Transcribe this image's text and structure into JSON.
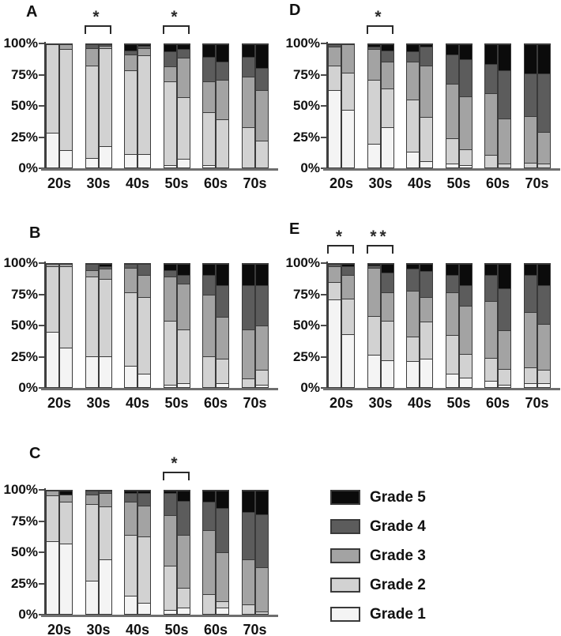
{
  "figure_title": "",
  "colors": {
    "grade_colors": [
      "#f4f4f4",
      "#d2d2d2",
      "#a3a3a3",
      "#5c5c5c",
      "#0b0b0b"
    ],
    "bar_border": "#3a3a3a",
    "axis": "#404040",
    "baseline": "#6e6e6e",
    "text": "#111111"
  },
  "axis": {
    "y_ticks": [
      "100%",
      "75%",
      "50%",
      "25%",
      "0%"
    ],
    "x_categories": [
      "20s",
      "30s",
      "40s",
      "50s",
      "60s",
      "70s"
    ],
    "ylim": [
      0,
      100
    ],
    "grid": false
  },
  "legend": {
    "position": "bottom-right",
    "items": [
      {
        "label": "Grade 5",
        "color": "#0b0b0b"
      },
      {
        "label": "Grade 4",
        "color": "#5c5c5c"
      },
      {
        "label": "Grade 3",
        "color": "#a3a3a3"
      },
      {
        "label": "Grade 2",
        "color": "#d2d2d2"
      },
      {
        "label": "Grade 1",
        "color": "#f4f4f4"
      }
    ]
  },
  "chart_data": [
    {
      "panel": "A",
      "type": "bar",
      "stacked": true,
      "unit": "percent",
      "categories": [
        "20s",
        "30s",
        "40s",
        "50s",
        "60s",
        "70s"
      ],
      "series_labels": [
        "Grade 1",
        "Grade 2",
        "Grade 3",
        "Grade 4",
        "Grade 5"
      ],
      "bars_per_category": 2,
      "values": [
        [
          [
            28,
            72,
            0,
            0,
            0
          ],
          [
            14,
            82,
            4,
            0,
            0
          ]
        ],
        [
          [
            8,
            75,
            14,
            3,
            0
          ],
          [
            17,
            80,
            2,
            1,
            0
          ]
        ],
        [
          [
            11,
            68,
            13,
            3,
            5
          ],
          [
            11,
            80,
            6,
            2,
            1
          ]
        ],
        [
          [
            2,
            68,
            12,
            12,
            6
          ],
          [
            7,
            50,
            32,
            7,
            4
          ]
        ],
        [
          [
            2,
            43,
            25,
            20,
            10
          ],
          [
            0,
            39,
            32,
            15,
            14
          ]
        ],
        [
          [
            0,
            33,
            41,
            16,
            10
          ],
          [
            0,
            22,
            41,
            18,
            19
          ]
        ]
      ],
      "significance": [
        {
          "category": "30s",
          "label": "*"
        },
        {
          "category": "50s",
          "label": "*"
        }
      ]
    },
    {
      "panel": "B",
      "type": "bar",
      "stacked": true,
      "unit": "percent",
      "categories": [
        "20s",
        "30s",
        "40s",
        "50s",
        "60s",
        "70s"
      ],
      "series_labels": [
        "Grade 1",
        "Grade 2",
        "Grade 3",
        "Grade 4",
        "Grade 5"
      ],
      "bars_per_category": 2,
      "values": [
        [
          [
            45,
            53,
            2,
            0,
            0
          ],
          [
            32,
            66,
            2,
            0,
            0
          ]
        ],
        [
          [
            25,
            65,
            5,
            5,
            0
          ],
          [
            25,
            63,
            8,
            2,
            2
          ]
        ],
        [
          [
            17,
            60,
            20,
            3,
            0
          ],
          [
            11,
            62,
            18,
            9,
            0
          ]
        ],
        [
          [
            2,
            52,
            36,
            5,
            5
          ],
          [
            3,
            44,
            37,
            7,
            9
          ]
        ],
        [
          [
            0,
            25,
            50,
            16,
            9
          ],
          [
            3,
            20,
            34,
            26,
            17
          ]
        ],
        [
          [
            0,
            7,
            40,
            36,
            17
          ],
          [
            2,
            12,
            36,
            33,
            17
          ]
        ]
      ],
      "significance": []
    },
    {
      "panel": "C",
      "type": "bar",
      "stacked": true,
      "unit": "percent",
      "categories": [
        "20s",
        "30s",
        "40s",
        "50s",
        "60s",
        "70s"
      ],
      "series_labels": [
        "Grade 1",
        "Grade 2",
        "Grade 3",
        "Grade 4",
        "Grade 5"
      ],
      "bars_per_category": 2,
      "values": [
        [
          [
            59,
            37,
            4,
            0,
            0
          ],
          [
            57,
            34,
            6,
            0,
            3
          ]
        ],
        [
          [
            27,
            62,
            8,
            3,
            0
          ],
          [
            44,
            43,
            11,
            2,
            0
          ]
        ],
        [
          [
            15,
            49,
            27,
            7,
            2
          ],
          [
            9,
            54,
            25,
            10,
            2
          ]
        ],
        [
          [
            3,
            36,
            41,
            18,
            2
          ],
          [
            5,
            16,
            43,
            28,
            8
          ]
        ],
        [
          [
            0,
            16,
            52,
            23,
            9
          ],
          [
            5,
            5,
            40,
            36,
            14
          ]
        ],
        [
          [
            0,
            8,
            36,
            39,
            17
          ],
          [
            0,
            2,
            36,
            43,
            19
          ]
        ]
      ],
      "significance": [
        {
          "category": "50s",
          "label": "*"
        }
      ]
    },
    {
      "panel": "D",
      "type": "bar",
      "stacked": true,
      "unit": "percent",
      "categories": [
        "20s",
        "30s",
        "40s",
        "50s",
        "60s",
        "70s"
      ],
      "series_labels": [
        "Grade 1",
        "Grade 2",
        "Grade 3",
        "Grade 4",
        "Grade 5"
      ],
      "bars_per_category": 2,
      "values": [
        [
          [
            63,
            20,
            15,
            2,
            0
          ],
          [
            47,
            30,
            23,
            0,
            0
          ]
        ],
        [
          [
            19,
            52,
            25,
            2,
            2
          ],
          [
            33,
            31,
            22,
            9,
            5
          ]
        ],
        [
          [
            13,
            42,
            31,
            8,
            6
          ],
          [
            5,
            36,
            42,
            15,
            2
          ]
        ],
        [
          [
            3,
            21,
            44,
            24,
            8
          ],
          [
            2,
            13,
            43,
            30,
            12
          ]
        ],
        [
          [
            0,
            10,
            50,
            24,
            16
          ],
          [
            0,
            3,
            37,
            39,
            21
          ]
        ],
        [
          [
            0,
            4,
            38,
            34,
            24
          ],
          [
            0,
            3,
            26,
            47,
            24
          ]
        ]
      ],
      "significance": [
        {
          "category": "30s",
          "label": "*"
        }
      ]
    },
    {
      "panel": "E",
      "type": "bar",
      "stacked": true,
      "unit": "percent",
      "categories": [
        "20s",
        "30s",
        "40s",
        "50s",
        "60s",
        "70s"
      ],
      "series_labels": [
        "Grade 1",
        "Grade 2",
        "Grade 3",
        "Grade 4",
        "Grade 5"
      ],
      "bars_per_category": 2,
      "values": [
        [
          [
            71,
            14,
            13,
            2,
            0
          ],
          [
            43,
            29,
            19,
            7,
            2
          ]
        ],
        [
          [
            26,
            32,
            39,
            2,
            1
          ],
          [
            22,
            32,
            23,
            16,
            7
          ]
        ],
        [
          [
            21,
            20,
            37,
            18,
            4
          ],
          [
            23,
            30,
            20,
            21,
            6
          ]
        ],
        [
          [
            11,
            31,
            35,
            14,
            9
          ],
          [
            8,
            19,
            39,
            17,
            17
          ]
        ],
        [
          [
            5,
            19,
            46,
            21,
            9
          ],
          [
            2,
            13,
            31,
            34,
            20
          ]
        ],
        [
          [
            3,
            13,
            45,
            30,
            9
          ],
          [
            3,
            11,
            37,
            32,
            17
          ]
        ]
      ],
      "significance": [
        {
          "category": "20s",
          "label": "*"
        },
        {
          "category": "30s",
          "label": "**"
        }
      ]
    }
  ]
}
